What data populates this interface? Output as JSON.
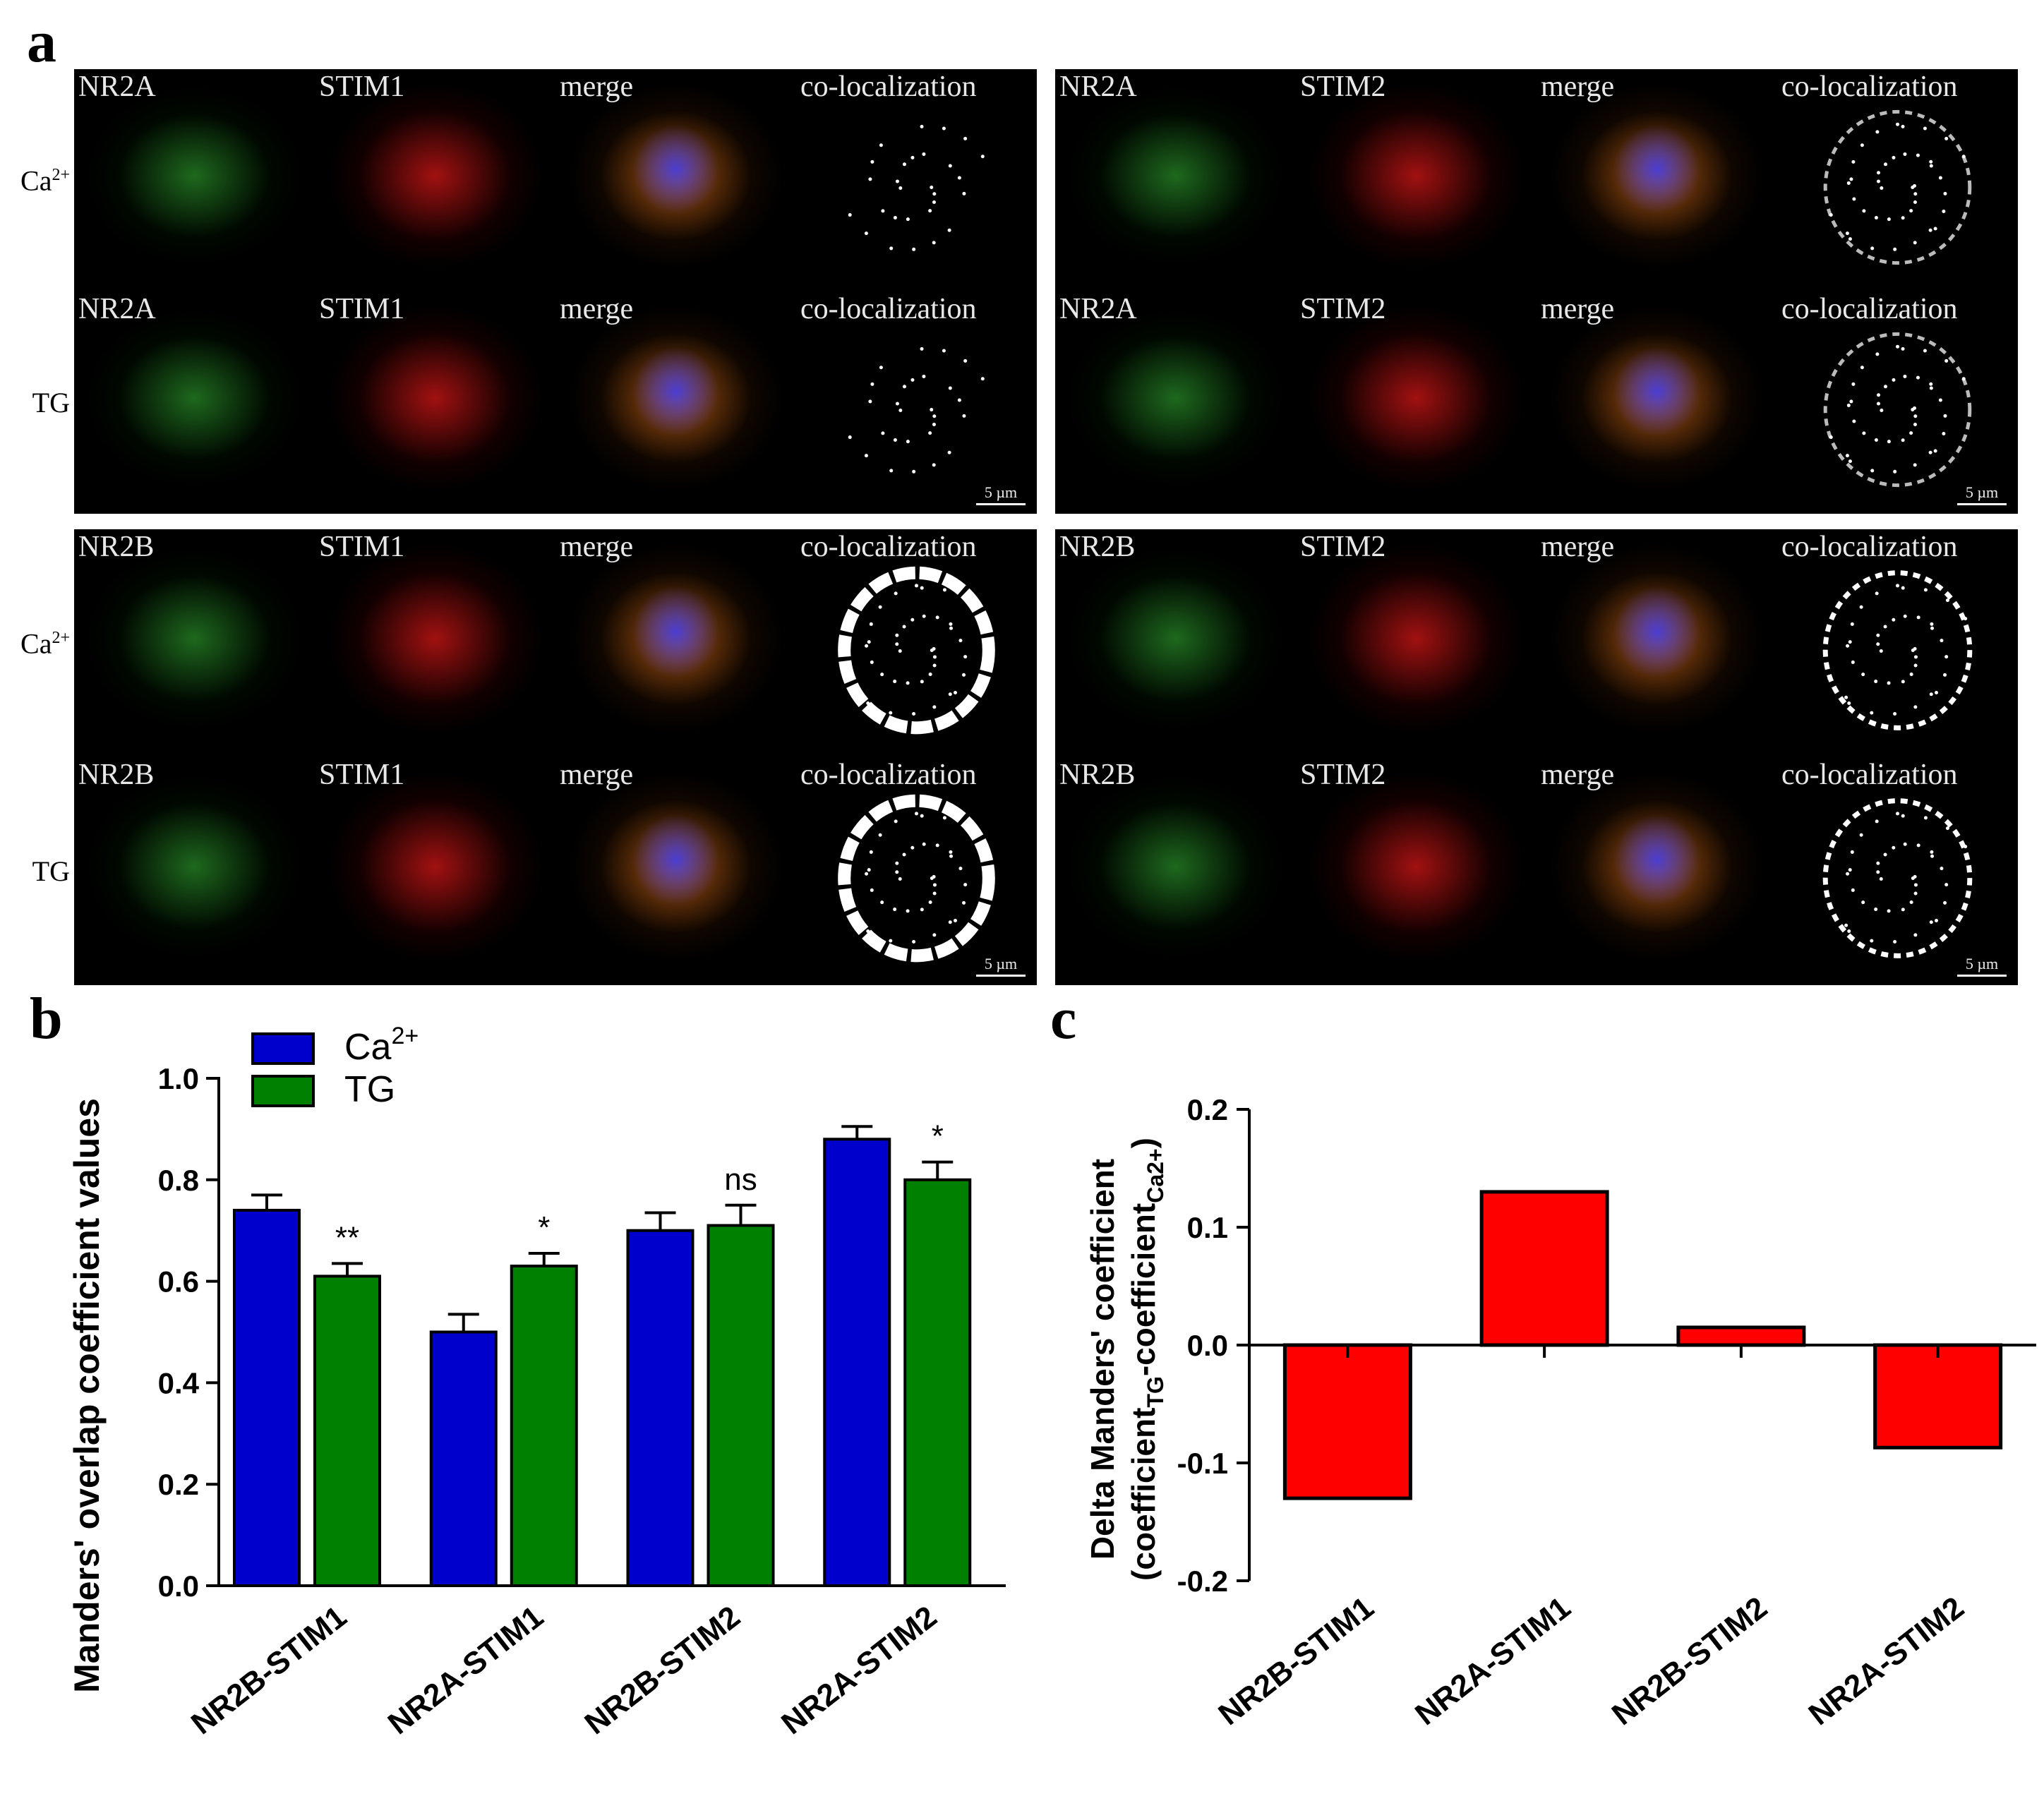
{
  "panels": {
    "a": "a",
    "b": "b",
    "c": "c"
  },
  "micrograph_groups": [
    {
      "rows": [
        {
          "condition": "Ca",
          "condition_sup": "2+",
          "labels": [
            "NR2A",
            "STIM1",
            "merge",
            "co-localization"
          ],
          "pattern": "sparse"
        },
        {
          "condition": "TG",
          "condition_sup": "",
          "labels": [
            "NR2A",
            "STIM1",
            "merge",
            "co-localization"
          ],
          "pattern": "sparse"
        }
      ],
      "scale_label": "5 µm"
    },
    {
      "rows": [
        {
          "condition": "",
          "condition_sup": "",
          "labels": [
            "NR2A",
            "STIM2",
            "merge",
            "co-localization"
          ],
          "pattern": "medium"
        },
        {
          "condition": "",
          "condition_sup": "",
          "labels": [
            "NR2A",
            "STIM2",
            "merge",
            "co-localization"
          ],
          "pattern": "medium"
        }
      ],
      "scale_label": "5 µm"
    },
    {
      "rows": [
        {
          "condition": "Ca",
          "condition_sup": "2+",
          "labels": [
            "NR2B",
            "STIM1",
            "merge",
            "co-localization"
          ],
          "pattern": "ring"
        },
        {
          "condition": "TG",
          "condition_sup": "",
          "labels": [
            "NR2B",
            "STIM1",
            "merge",
            "co-localization"
          ],
          "pattern": "ring"
        }
      ],
      "scale_label": "5 µm"
    },
    {
      "rows": [
        {
          "condition": "",
          "condition_sup": "",
          "labels": [
            "NR2B",
            "STIM2",
            "merge",
            "co-localization"
          ],
          "pattern": "thin-ring"
        },
        {
          "condition": "",
          "condition_sup": "",
          "labels": [
            "NR2B",
            "STIM2",
            "merge",
            "co-localization"
          ],
          "pattern": "thin-ring"
        }
      ],
      "scale_label": "5 µm"
    }
  ],
  "chart_data": [
    {
      "type": "bar",
      "categories": [
        "NR2B-STIM1",
        "NR2A-STIM1",
        "NR2B-STIM2",
        "NR2A-STIM2"
      ],
      "series": [
        {
          "name": "Ca",
          "name_sup": "2+",
          "color": "#0000cc",
          "values": [
            0.74,
            0.5,
            0.7,
            0.88
          ],
          "errors": [
            0.03,
            0.035,
            0.035,
            0.025
          ]
        },
        {
          "name": "TG",
          "name_sup": "",
          "color": "#008000",
          "values": [
            0.61,
            0.63,
            0.71,
            0.8
          ],
          "errors": [
            0.025,
            0.025,
            0.04,
            0.035
          ]
        }
      ],
      "significance": [
        "**",
        "*",
        "ns",
        "*"
      ],
      "ylabel": "Manders' overlap coefficient values",
      "ylim": [
        0,
        1.0
      ],
      "yticks": [
        "0.0",
        "0.2",
        "0.4",
        "0.6",
        "0.8",
        "1.0"
      ],
      "legend_position": "top-left"
    },
    {
      "type": "bar",
      "categories": [
        "NR2B-STIM1",
        "NR2A-STIM1",
        "NR2B-STIM2",
        "NR2A-STIM2"
      ],
      "series": [
        {
          "color": "#ff0000",
          "values": [
            -0.13,
            0.13,
            0.015,
            -0.087
          ]
        }
      ],
      "ylabel_line1": "Delta Manders' coefficient",
      "ylabel_line2": "(coefficient",
      "ylabel_sub1": "TG",
      "ylabel_mid": "-coefficient",
      "ylabel_sub2": "Ca2+",
      "ylabel_end": ")",
      "ylim": [
        -0.2,
        0.2
      ],
      "yticks": [
        "-0.2",
        "-0.1",
        "0.0",
        "0.1",
        "0.2"
      ]
    }
  ]
}
